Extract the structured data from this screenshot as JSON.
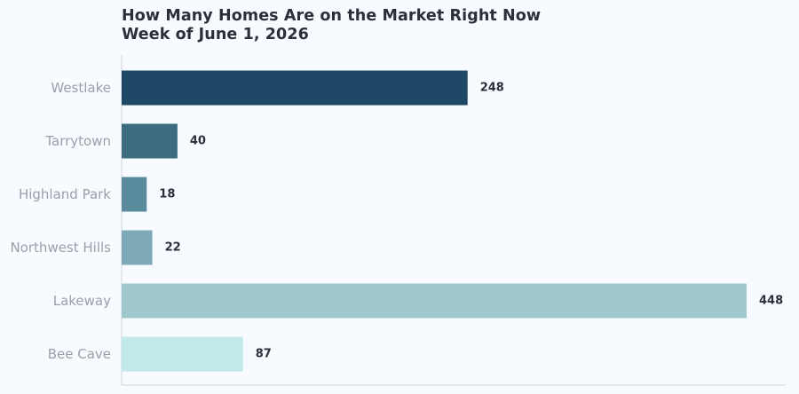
{
  "chart_data": {
    "type": "bar",
    "orientation": "horizontal",
    "title": "How Many Homes Are on the Market Right Now",
    "subtitle": "Week of June 1, 2026",
    "xlabel": "",
    "ylabel": "",
    "xlim": [
      0,
      476
    ],
    "grid": false,
    "categories": [
      "Westlake",
      "Tarrytown",
      "Highland Park",
      "Northwest Hills",
      "Lakeway",
      "Bee Cave"
    ],
    "values": [
      248,
      40,
      18,
      22,
      448,
      87
    ],
    "value_labels": [
      "248",
      "40",
      "18",
      "22",
      "448",
      "87"
    ],
    "colors": [
      "#1e4866",
      "#3d6b80",
      "#5a8b9c",
      "#7ea9b6",
      "#9ec8cc",
      "#c1e9ea"
    ]
  }
}
